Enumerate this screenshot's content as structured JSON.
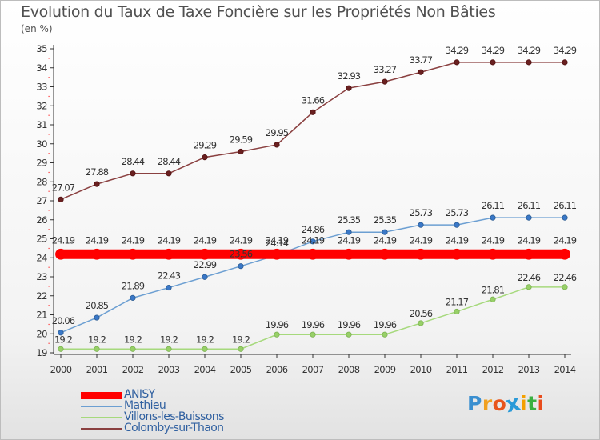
{
  "title": "Evolution du Taux de Taxe Foncière sur les Propriétés Non Bâties",
  "unit": "(en %)",
  "logo": {
    "letters": [
      "P",
      "r",
      "o",
      "x",
      "i",
      "t",
      "i"
    ],
    "colors": [
      "#3a8fd0",
      "#f0a020",
      "#e8541c",
      "#2a9ad8",
      "#f4a000",
      "#3ab040",
      "#e84c1c"
    ]
  },
  "chart_data": {
    "type": "line",
    "title": "Evolution du Taux de Taxe Foncière sur les Propriétés Non Bâties",
    "ylabel": "(en %)",
    "xlabel": "",
    "ylim": [
      19,
      35
    ],
    "yticks": [
      19,
      20,
      21,
      22,
      23,
      24,
      25,
      26,
      27,
      28,
      29,
      30,
      31,
      32,
      33,
      34,
      35
    ],
    "x": [
      "2000",
      "2001",
      "2002",
      "2003",
      "2004",
      "2005",
      "2006",
      "2007",
      "2008",
      "2009",
      "2010",
      "2011",
      "2012",
      "2013",
      "2014"
    ],
    "grid": false,
    "legend_position": "bottom-left",
    "series": [
      {
        "name": "ANISY",
        "color": "#ff0000",
        "labels": [
          "24.19",
          "24.19",
          "24.19",
          "24.19",
          "24.19",
          "24.19",
          "24.19",
          "24.19",
          "24.19",
          "24.19",
          "24.19",
          "24.19",
          "24.19",
          "24.19",
          "24.19"
        ],
        "values": [
          24.19,
          24.19,
          24.19,
          24.19,
          24.19,
          24.19,
          24.19,
          24.19,
          24.19,
          24.19,
          24.19,
          24.19,
          24.19,
          24.19,
          24.19
        ]
      },
      {
        "name": "Mathieu",
        "color": "#6c9fd2",
        "labels": [
          "20.06",
          "20.85",
          "21.89",
          "22.43",
          "22.99",
          "23.56",
          "24.14",
          "24.86",
          "25.35",
          "25.35",
          "25.73",
          "25.73",
          "26.11",
          "26.11",
          "26.11"
        ],
        "values": [
          20.06,
          20.85,
          21.89,
          22.43,
          22.99,
          23.56,
          24.14,
          24.86,
          25.35,
          25.35,
          25.73,
          25.73,
          26.11,
          26.11,
          26.11
        ]
      },
      {
        "name": "Villons-les-Buissons",
        "color": "#a6d97c",
        "labels": [
          "19.2",
          "19.2",
          "19.2",
          "19.2",
          "19.2",
          "19.2",
          "19.96",
          "19.96",
          "19.96",
          "19.96",
          "20.56",
          "21.17",
          "21.81",
          "22.46",
          "22.46"
        ],
        "values": [
          19.2,
          19.2,
          19.2,
          19.2,
          19.2,
          19.2,
          19.96,
          19.96,
          19.96,
          19.96,
          20.56,
          21.17,
          21.81,
          22.46,
          22.46
        ]
      },
      {
        "name": "Colomby-sur-Thaon",
        "color": "#8a4040",
        "labels": [
          "27.07",
          "27.88",
          "28.44",
          "28.44",
          "29.29",
          "29.59",
          "29.95",
          "31.66",
          "32.93",
          "33.27",
          "33.77",
          "34.29",
          "34.29",
          "34.29",
          "34.29"
        ],
        "values": [
          27.07,
          27.88,
          28.44,
          28.44,
          29.29,
          29.59,
          29.95,
          31.66,
          32.93,
          33.27,
          33.77,
          34.29,
          34.29,
          34.29,
          34.29
        ]
      }
    ]
  }
}
